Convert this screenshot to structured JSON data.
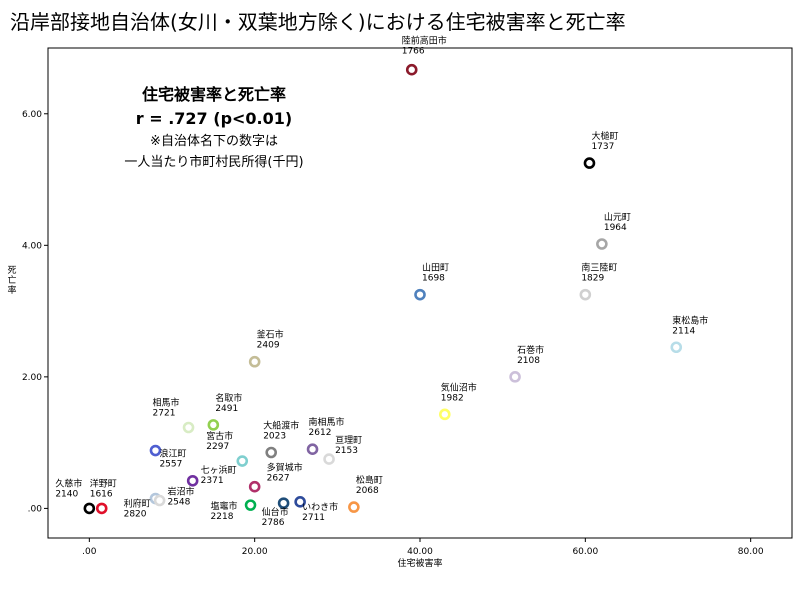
{
  "chart_data": {
    "type": "scatter",
    "title": "沿岸部接地自治体(女川・双葉地方除く)における住宅被害率と死亡率",
    "xlabel": "住宅被害率",
    "ylabel": "死亡率",
    "xlim": [
      -5,
      85
    ],
    "ylim": [
      -0.45,
      7.0
    ],
    "x_ticks": [
      ".00",
      "20.00",
      "40.00",
      "60.00",
      "80.00"
    ],
    "y_ticks": [
      ".00",
      "2.00",
      "4.00",
      "6.00"
    ],
    "grid": false,
    "annotation": {
      "line1": "住宅被害率と死亡率",
      "line2": "r = .727 (p<0.01)",
      "line3": "※自治体名下の数字は",
      "line4": "一人当たり市町村民所得(千円)"
    },
    "points": [
      {
        "name": "陸前高田市",
        "income": "1766",
        "x": 39,
        "y": 6.67,
        "color": "#8b1a2b"
      },
      {
        "name": "大槌町",
        "income": "1737",
        "x": 60.5,
        "y": 5.25,
        "color": "#000000"
      },
      {
        "name": "山元町",
        "income": "1964",
        "x": 62,
        "y": 4.02,
        "color": "#a6a6a6"
      },
      {
        "name": "南三陸町",
        "income": "1829",
        "x": 60,
        "y": 3.25,
        "color": "#d0d0d0"
      },
      {
        "name": "山田町",
        "income": "1698",
        "x": 40,
        "y": 3.25,
        "color": "#4f81bd"
      },
      {
        "name": "東松島市",
        "income": "2114",
        "x": 71,
        "y": 2.45,
        "color": "#b7dde8"
      },
      {
        "name": "石巻市",
        "income": "2108",
        "x": 51.5,
        "y": 2.0,
        "color": "#ccc0da"
      },
      {
        "name": "釜石市",
        "income": "2409",
        "x": 20,
        "y": 2.23,
        "color": "#c4bd97"
      },
      {
        "name": "気仙沼市",
        "income": "1982",
        "x": 43,
        "y": 1.43,
        "color": "#ffff66"
      },
      {
        "name": "相馬市",
        "income": "2721",
        "x": 12,
        "y": 1.23,
        "color": "#d8ecc4"
      },
      {
        "name": "名取市",
        "income": "2491",
        "x": 15,
        "y": 1.27,
        "color": "#92d050"
      },
      {
        "name": "宮古市",
        "income": "2297",
        "x": 18.5,
        "y": 0.72,
        "color": "#7fcfcf"
      },
      {
        "name": "大船渡市",
        "income": "2023",
        "x": 22,
        "y": 0.85,
        "color": "#808080"
      },
      {
        "name": "南相馬市",
        "income": "2612",
        "x": 27,
        "y": 0.9,
        "color": "#8064a2"
      },
      {
        "name": "亘理町",
        "income": "2153",
        "x": 29,
        "y": 0.75,
        "color": "#d9d9d9"
      },
      {
        "name": "浪江町",
        "income": "2557",
        "x": 8,
        "y": 0.88,
        "color": "#4f5fd1"
      },
      {
        "name": "七ヶ浜町",
        "income": "2371",
        "x": 12.5,
        "y": 0.42,
        "color": "#7030a0"
      },
      {
        "name": "多賀城市",
        "income": "2627",
        "x": 20,
        "y": 0.33,
        "color": "#b0306a"
      },
      {
        "name": "岩沼市",
        "income": "2548",
        "x": 8,
        "y": 0.15,
        "color": "#b4c7dc"
      },
      {
        "name": "塩竈市",
        "income": "2218",
        "x": 19.5,
        "y": 0.05,
        "color": "#00b050"
      },
      {
        "name": "仙台市",
        "income": "2786",
        "x": 23.5,
        "y": 0.08,
        "color": "#1f4e79"
      },
      {
        "name": "いわき市",
        "income": "2711",
        "x": 25.5,
        "y": 0.1,
        "color": "#2e4b9b"
      },
      {
        "name": "松島町",
        "income": "2068",
        "x": 32,
        "y": 0.02,
        "color": "#f79646"
      },
      {
        "name": "久慈市",
        "income": "2140",
        "x": 0,
        "y": 0.0,
        "color": "#000000"
      },
      {
        "name": "洋野町",
        "income": "1616",
        "x": 1.5,
        "y": 0.0,
        "color": "#e0102a"
      },
      {
        "name": "利府町",
        "income": "2820",
        "x": 8.5,
        "y": 0.12,
        "color": "#d9d9d9"
      }
    ]
  }
}
